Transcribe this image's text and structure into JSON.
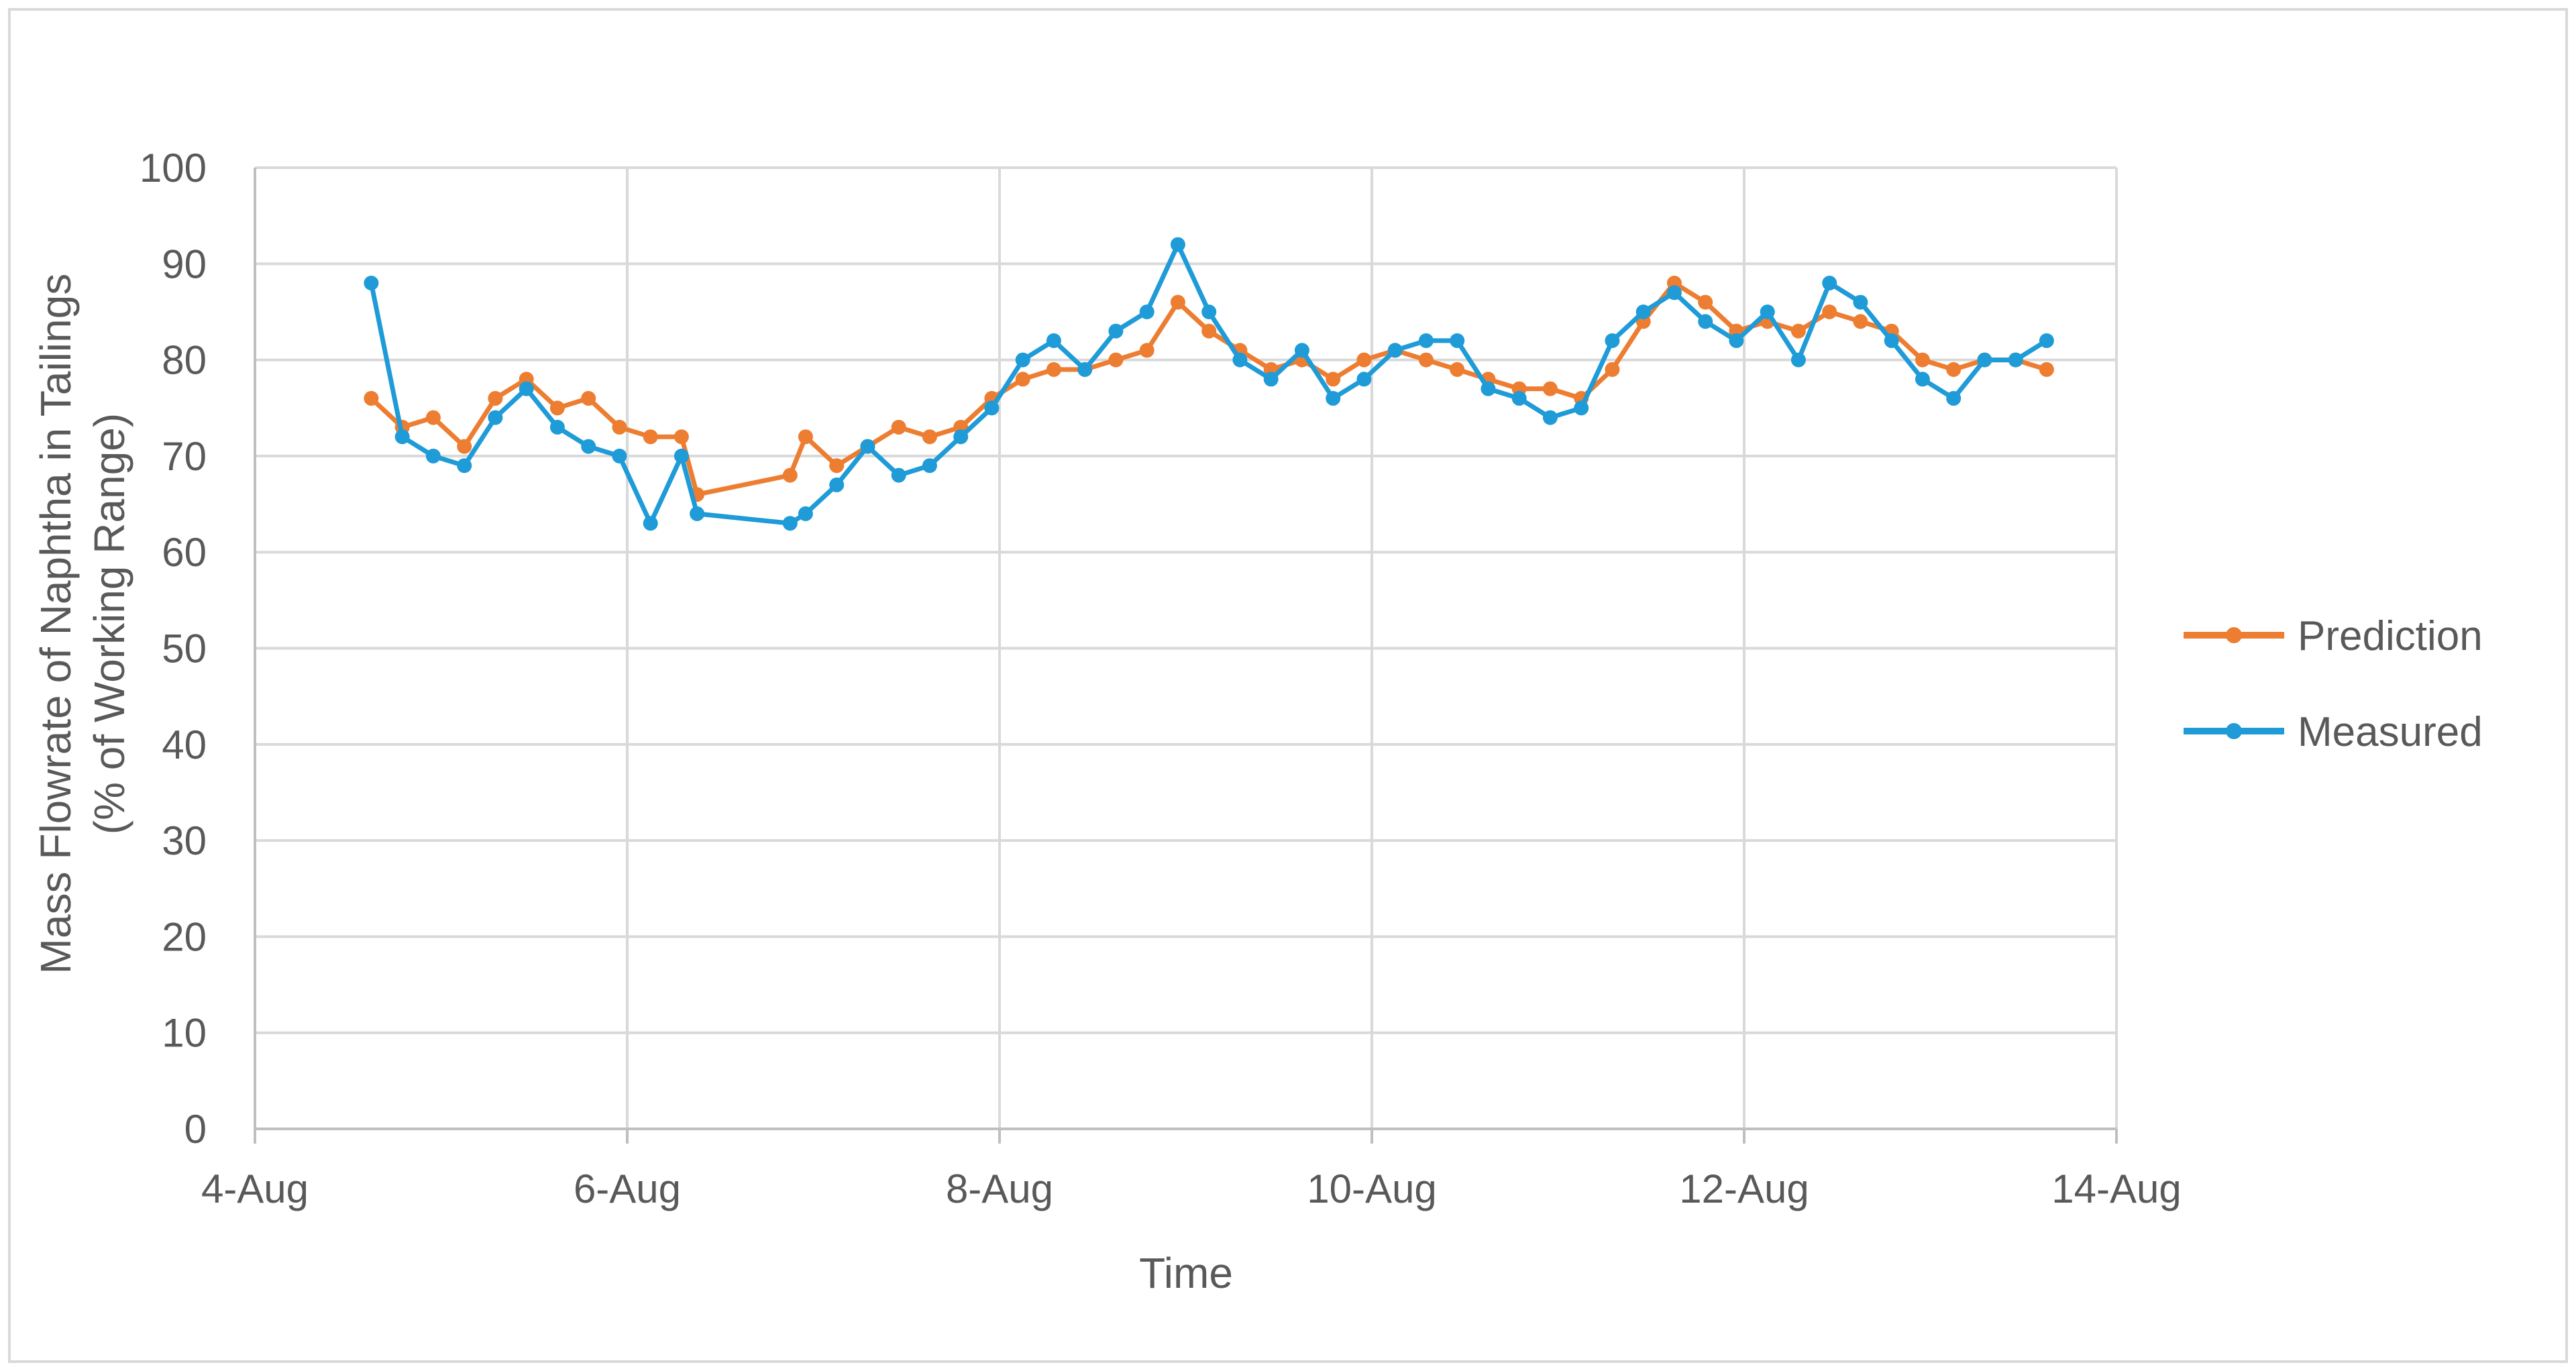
{
  "chart_data": {
    "type": "line",
    "title": "",
    "xlabel": "Time",
    "ylabel_lines": [
      "Mass Flowrate of Naphtha in Tailings",
      "(% of Working Range)"
    ],
    "x_ticks": [
      "4-Aug",
      "6-Aug",
      "8-Aug",
      "10-Aug",
      "12-Aug",
      "14-Aug"
    ],
    "y_ticks": [
      "0",
      "10",
      "20",
      "30",
      "40",
      "50",
      "60",
      "70",
      "80",
      "90",
      "100"
    ],
    "xlim": [
      "4-Aug",
      "14-Aug"
    ],
    "ylim": [
      0,
      100
    ],
    "grid": true,
    "legend_position": "right",
    "series": [
      {
        "name": "Prediction",
        "color": "#ED7D31",
        "points": [
          [
            "2023-08-04 15:00",
            76
          ],
          [
            "2023-08-04 19:00",
            73
          ],
          [
            "2023-08-04 23:00",
            74
          ],
          [
            "2023-08-05 03:00",
            71
          ],
          [
            "2023-08-05 07:00",
            76
          ],
          [
            "2023-08-05 11:00",
            78
          ],
          [
            "2023-08-05 15:00",
            75
          ],
          [
            "2023-08-05 19:00",
            76
          ],
          [
            "2023-08-05 23:00",
            73
          ],
          [
            "2023-08-06 03:00",
            72
          ],
          [
            "2023-08-06 07:00",
            72
          ],
          [
            "2023-08-06 09:00",
            66
          ],
          [
            "2023-08-06 21:00",
            68
          ],
          [
            "2023-08-06 23:00",
            72
          ],
          [
            "2023-08-07 03:00",
            69
          ],
          [
            "2023-08-07 07:00",
            71
          ],
          [
            "2023-08-07 11:00",
            73
          ],
          [
            "2023-08-07 15:00",
            72
          ],
          [
            "2023-08-07 19:00",
            73
          ],
          [
            "2023-08-07 23:00",
            76
          ],
          [
            "2023-08-08 03:00",
            78
          ],
          [
            "2023-08-08 07:00",
            79
          ],
          [
            "2023-08-08 11:00",
            79
          ],
          [
            "2023-08-08 15:00",
            80
          ],
          [
            "2023-08-08 19:00",
            81
          ],
          [
            "2023-08-08 23:00",
            86
          ],
          [
            "2023-08-09 03:00",
            83
          ],
          [
            "2023-08-09 07:00",
            81
          ],
          [
            "2023-08-09 11:00",
            79
          ],
          [
            "2023-08-09 15:00",
            80
          ],
          [
            "2023-08-09 19:00",
            78
          ],
          [
            "2023-08-09 23:00",
            80
          ],
          [
            "2023-08-10 03:00",
            81
          ],
          [
            "2023-08-10 07:00",
            80
          ],
          [
            "2023-08-10 11:00",
            79
          ],
          [
            "2023-08-10 15:00",
            78
          ],
          [
            "2023-08-10 19:00",
            77
          ],
          [
            "2023-08-10 23:00",
            77
          ],
          [
            "2023-08-11 03:00",
            76
          ],
          [
            "2023-08-11 07:00",
            79
          ],
          [
            "2023-08-11 11:00",
            84
          ],
          [
            "2023-08-11 15:00",
            88
          ],
          [
            "2023-08-11 19:00",
            86
          ],
          [
            "2023-08-11 23:00",
            83
          ],
          [
            "2023-08-12 03:00",
            84
          ],
          [
            "2023-08-12 07:00",
            83
          ],
          [
            "2023-08-12 11:00",
            85
          ],
          [
            "2023-08-12 15:00",
            84
          ],
          [
            "2023-08-12 19:00",
            83
          ],
          [
            "2023-08-12 23:00",
            80
          ],
          [
            "2023-08-13 03:00",
            79
          ],
          [
            "2023-08-13 07:00",
            80
          ],
          [
            "2023-08-13 11:00",
            80
          ],
          [
            "2023-08-13 15:00",
            79
          ]
        ]
      },
      {
        "name": "Measured",
        "color": "#1F9BD7",
        "points": [
          [
            "2023-08-04 15:00",
            88
          ],
          [
            "2023-08-04 19:00",
            72
          ],
          [
            "2023-08-04 23:00",
            70
          ],
          [
            "2023-08-05 03:00",
            69
          ],
          [
            "2023-08-05 07:00",
            74
          ],
          [
            "2023-08-05 11:00",
            77
          ],
          [
            "2023-08-05 15:00",
            73
          ],
          [
            "2023-08-05 19:00",
            71
          ],
          [
            "2023-08-05 23:00",
            70
          ],
          [
            "2023-08-06 03:00",
            63
          ],
          [
            "2023-08-06 07:00",
            70
          ],
          [
            "2023-08-06 09:00",
            64
          ],
          [
            "2023-08-06 21:00",
            63
          ],
          [
            "2023-08-06 23:00",
            64
          ],
          [
            "2023-08-07 03:00",
            67
          ],
          [
            "2023-08-07 07:00",
            71
          ],
          [
            "2023-08-07 11:00",
            68
          ],
          [
            "2023-08-07 15:00",
            69
          ],
          [
            "2023-08-07 19:00",
            72
          ],
          [
            "2023-08-07 23:00",
            75
          ],
          [
            "2023-08-08 03:00",
            80
          ],
          [
            "2023-08-08 07:00",
            82
          ],
          [
            "2023-08-08 11:00",
            79
          ],
          [
            "2023-08-08 15:00",
            83
          ],
          [
            "2023-08-08 19:00",
            85
          ],
          [
            "2023-08-08 23:00",
            92
          ],
          [
            "2023-08-09 03:00",
            85
          ],
          [
            "2023-08-09 07:00",
            80
          ],
          [
            "2023-08-09 11:00",
            78
          ],
          [
            "2023-08-09 15:00",
            81
          ],
          [
            "2023-08-09 19:00",
            76
          ],
          [
            "2023-08-09 23:00",
            78
          ],
          [
            "2023-08-10 03:00",
            81
          ],
          [
            "2023-08-10 07:00",
            82
          ],
          [
            "2023-08-10 11:00",
            82
          ],
          [
            "2023-08-10 15:00",
            77
          ],
          [
            "2023-08-10 19:00",
            76
          ],
          [
            "2023-08-10 23:00",
            74
          ],
          [
            "2023-08-11 03:00",
            75
          ],
          [
            "2023-08-11 07:00",
            82
          ],
          [
            "2023-08-11 11:00",
            85
          ],
          [
            "2023-08-11 15:00",
            87
          ],
          [
            "2023-08-11 19:00",
            84
          ],
          [
            "2023-08-11 23:00",
            82
          ],
          [
            "2023-08-12 03:00",
            85
          ],
          [
            "2023-08-12 07:00",
            80
          ],
          [
            "2023-08-12 11:00",
            88
          ],
          [
            "2023-08-12 15:00",
            86
          ],
          [
            "2023-08-12 19:00",
            82
          ],
          [
            "2023-08-12 23:00",
            78
          ],
          [
            "2023-08-13 03:00",
            76
          ],
          [
            "2023-08-13 07:00",
            80
          ],
          [
            "2023-08-13 11:00",
            80
          ],
          [
            "2023-08-13 15:00",
            82
          ]
        ]
      }
    ]
  },
  "colors": {
    "grid": "#D9D9D9",
    "axis": "#BFBFBF",
    "text": "#595959",
    "frame": "#D9D9D9"
  }
}
